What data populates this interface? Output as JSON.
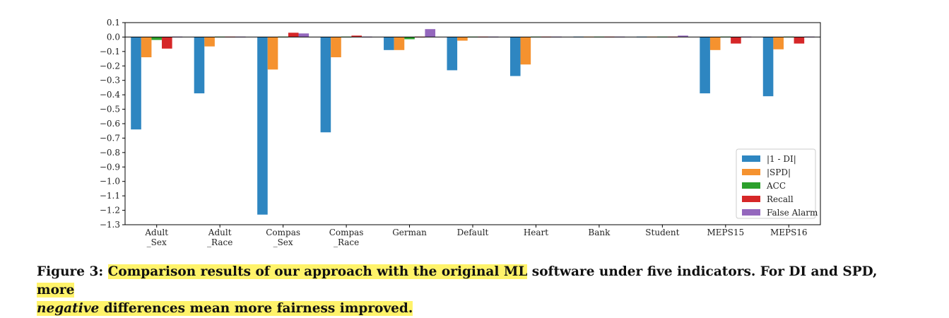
{
  "chart_data": {
    "type": "bar",
    "categories": [
      "Adult\n_Sex",
      "Adult\n_Race",
      "Compas\n_Sex",
      "Compas\n_Race",
      "German",
      "Default",
      "Heart",
      "Bank",
      "Student",
      "MEPS15",
      "MEPS16"
    ],
    "series": [
      {
        "name": "|1 - DI|",
        "color": "#2e86c1",
        "values": [
          -0.64,
          -0.39,
          -1.23,
          -0.66,
          -0.09,
          -0.23,
          -0.27,
          0.0,
          0.0,
          -0.39,
          -0.41
        ]
      },
      {
        "name": "|SPD|",
        "color": "#f5922f",
        "values": [
          -0.14,
          -0.065,
          -0.225,
          -0.14,
          -0.09,
          -0.025,
          -0.19,
          0.0,
          0.0,
          -0.09,
          -0.085
        ]
      },
      {
        "name": "ACC",
        "color": "#2ca02c",
        "values": [
          -0.02,
          -0.005,
          -0.005,
          -0.005,
          -0.015,
          -0.005,
          -0.005,
          -0.005,
          -0.005,
          -0.005,
          -0.005
        ]
      },
      {
        "name": "Recall",
        "color": "#d62728",
        "values": [
          -0.08,
          0.0,
          0.03,
          0.01,
          0.0,
          0.0,
          0.0,
          0.0,
          0.0,
          -0.045,
          -0.045
        ]
      },
      {
        "name": "False Alarm",
        "color": "#9467bd",
        "values": [
          0.0,
          0.0,
          0.025,
          0.0,
          0.055,
          0.0,
          0.0,
          0.0,
          0.01,
          0.0,
          0.0
        ]
      }
    ],
    "ylim": [
      -1.3,
      0.1
    ],
    "yticks": [
      "0.1",
      "0.0",
      "−0.1",
      "−0.2",
      "−0.3",
      "−0.4",
      "−0.5",
      "−0.6",
      "−0.7",
      "−0.8",
      "−0.9",
      "−1.0",
      "−1.1",
      "−1.2",
      "−1.3"
    ],
    "ytick_values": [
      0.1,
      0.0,
      -0.1,
      -0.2,
      -0.3,
      -0.4,
      -0.5,
      -0.6,
      -0.7,
      -0.8,
      -0.9,
      -1.0,
      -1.1,
      -1.2,
      -1.3
    ],
    "zero_line": true,
    "grid": false,
    "legend_position": "lower-right"
  },
  "caption": {
    "label": "Figure 3:",
    "seg1": "Comparison results of our approach with the original ML",
    "seg2": " software under five indicators. For DI and SPD, ",
    "seg3": "more",
    "seg4": "negative",
    "seg5": " differences mean more fairness improved."
  }
}
